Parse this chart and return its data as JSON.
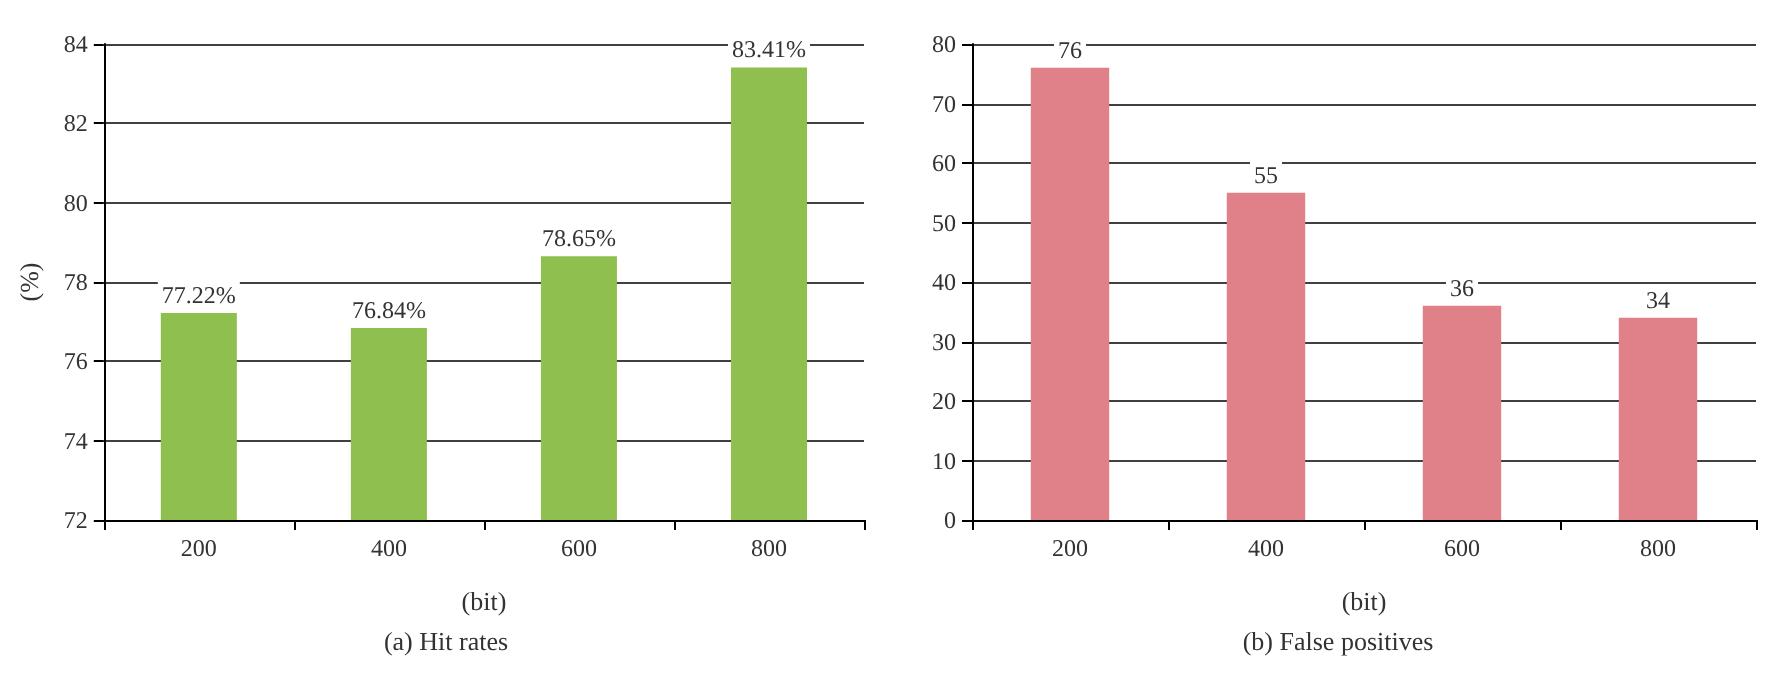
{
  "chart_data": [
    {
      "type": "bar",
      "title": "(a) Hit rates",
      "xlabel": "(bit)",
      "ylabel": "(%)",
      "categories": [
        "200",
        "400",
        "600",
        "800"
      ],
      "values": [
        77.22,
        76.84,
        78.65,
        83.41
      ],
      "value_labels": [
        "77.22%",
        "76.84%",
        "78.65%",
        "83.41%"
      ],
      "color": "#8fbf4e",
      "ylim": [
        72,
        84
      ],
      "yticks": [
        72,
        74,
        76,
        78,
        80,
        82,
        84
      ],
      "grid": "y"
    },
    {
      "type": "bar",
      "title": "(b) False positives",
      "xlabel": "(bit)",
      "categories": [
        "200",
        "400",
        "600",
        "800"
      ],
      "values": [
        76,
        55,
        36,
        34
      ],
      "data_labels": true,
      "color": "#e08088",
      "ylim": [
        0,
        80
      ],
      "yticks": [
        0,
        10,
        20,
        30,
        40,
        50,
        60,
        70,
        80
      ],
      "grid": "y"
    }
  ]
}
